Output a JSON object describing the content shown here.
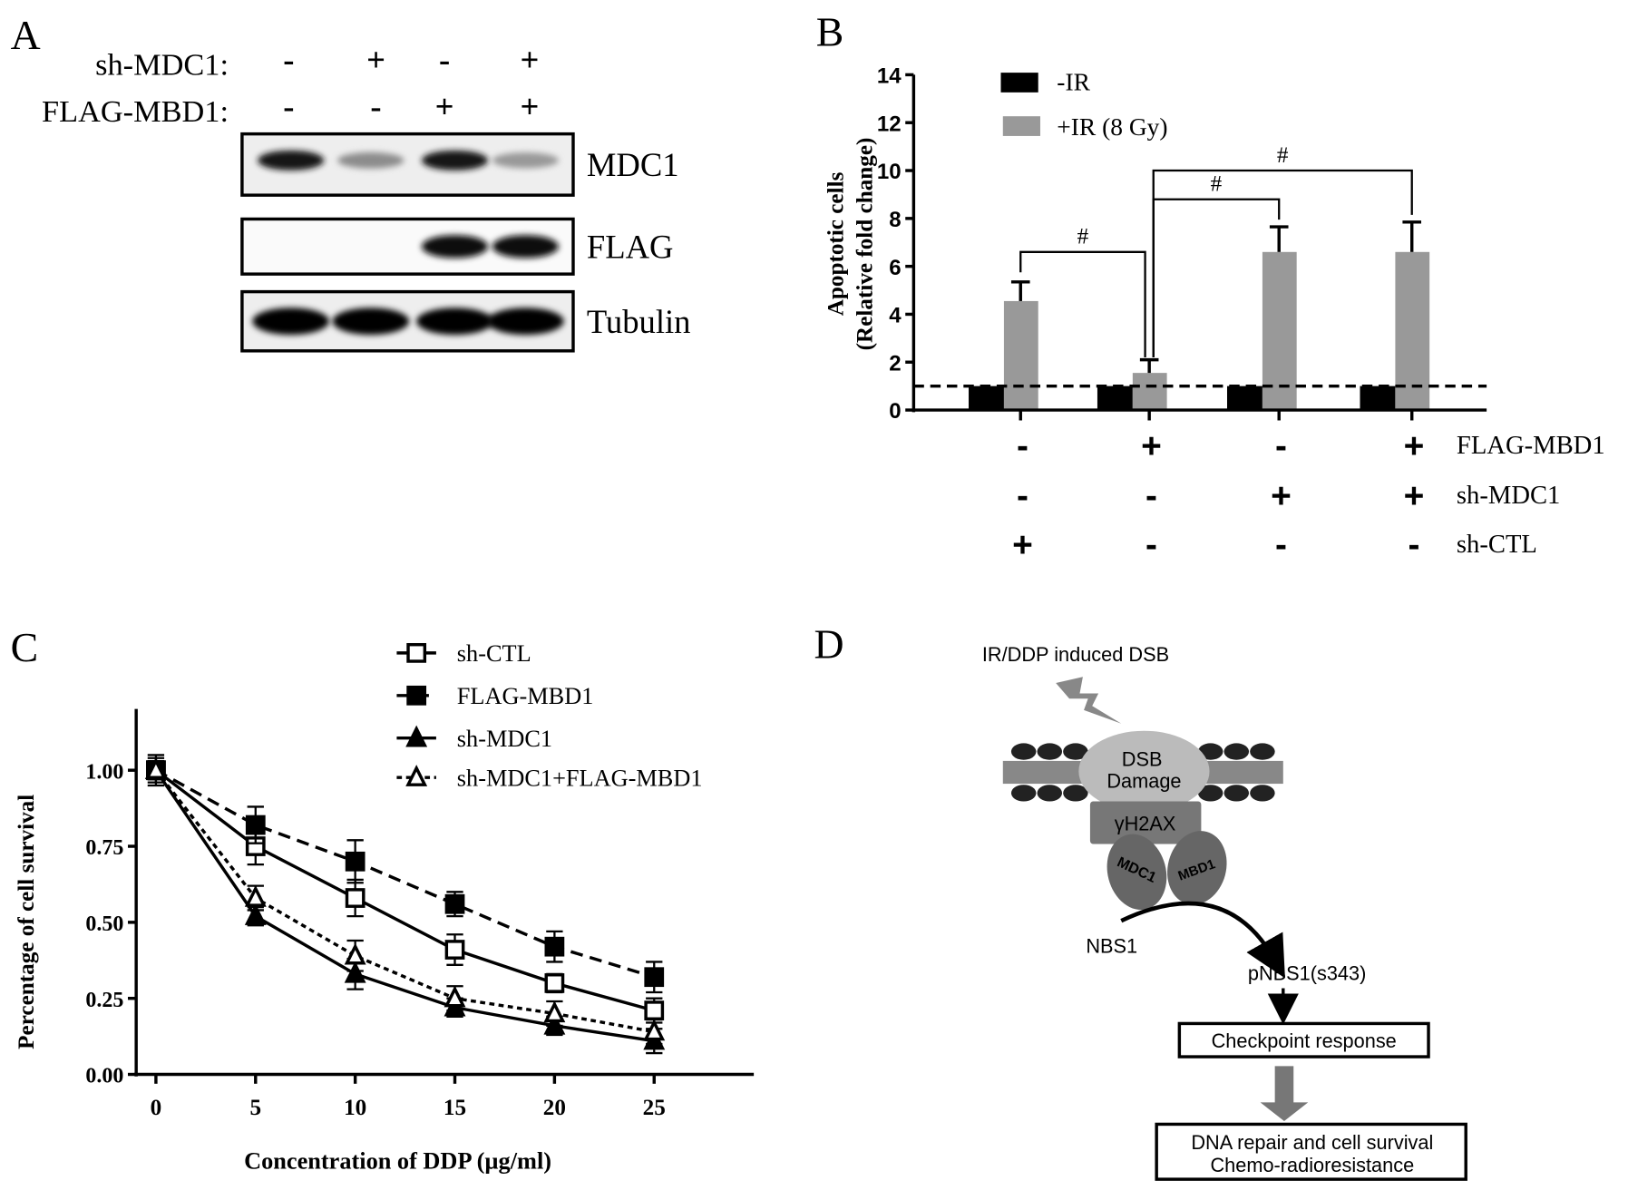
{
  "panel_labels": {
    "a": "A",
    "b": "B",
    "c": "C",
    "d": "D"
  },
  "panel_a": {
    "row_labels": [
      "sh-MDC1:",
      "FLAG-MBD1:"
    ],
    "rows": [
      [
        "-",
        "+",
        "-",
        "+"
      ],
      [
        "-",
        "-",
        "+",
        "+"
      ]
    ],
    "blots": [
      {
        "label": "MDC1",
        "intensity": [
          0.9,
          0.45,
          0.9,
          0.4
        ]
      },
      {
        "label": "FLAG",
        "intensity": [
          0.0,
          0.0,
          0.95,
          0.95
        ]
      },
      {
        "label": "Tubulin",
        "intensity": [
          1.0,
          1.0,
          1.0,
          1.0
        ]
      }
    ]
  },
  "chart_data": [
    {
      "type": "bar",
      "title": "",
      "ylabel": [
        "Apoptotic cells",
        "(Relative fold change)"
      ],
      "ylim": [
        0,
        14
      ],
      "yticks": [
        "0",
        "2",
        "4",
        "6",
        "8",
        "10",
        "12",
        "14"
      ],
      "reference_line": 1,
      "series": [
        {
          "name": "-IR",
          "color": "#000000",
          "values": [
            1,
            1,
            1,
            1
          ],
          "errors": [
            0,
            0,
            0,
            0
          ]
        },
        {
          "name": "+IR (8 Gy)",
          "color": "#999999",
          "values": [
            4.55,
            1.55,
            6.6,
            6.6
          ],
          "errors": [
            0.8,
            0.55,
            1.05,
            1.25
          ]
        }
      ],
      "condition_rows": [
        {
          "label": "FLAG-MBD1",
          "values": [
            "-",
            "+",
            "-",
            "+"
          ]
        },
        {
          "label": "sh-MDC1",
          "values": [
            "-",
            "-",
            "+",
            "+"
          ]
        },
        {
          "label": "sh-CTL",
          "values": [
            "+",
            "-",
            "-",
            "-"
          ]
        }
      ],
      "significance": [
        {
          "from": 0,
          "to": 1,
          "level": 6.6,
          "label": "#"
        },
        {
          "from": 1,
          "to": 2,
          "level": 8.8,
          "label": "#"
        },
        {
          "from": 1,
          "to": 3,
          "level": 10.0,
          "label": "#"
        }
      ],
      "legend_position": "top-left"
    },
    {
      "type": "line",
      "xlabel": "Concentration of DDP (µg/ml)",
      "ylabel": "Percentage of cell survival",
      "x": [
        0,
        5,
        10,
        15,
        20,
        25
      ],
      "xticks": [
        "0",
        "5",
        "10",
        "15",
        "20",
        "25"
      ],
      "yticks": [
        "0.00",
        "0.25",
        "0.50",
        "0.75",
        "1.00"
      ],
      "xlim": [
        0,
        30
      ],
      "ylim": [
        0,
        1.2
      ],
      "series": [
        {
          "name": "sh-CTL",
          "marker": "open-square",
          "line": "solid",
          "values": [
            1.0,
            0.75,
            0.58,
            0.41,
            0.3,
            0.21
          ],
          "errors": [
            0.04,
            0.06,
            0.06,
            0.05,
            0.03,
            0.04
          ]
        },
        {
          "name": "FLAG-MBD1",
          "marker": "filled-square",
          "line": "dashed",
          "values": [
            1.0,
            0.82,
            0.7,
            0.56,
            0.42,
            0.32
          ],
          "errors": [
            0.05,
            0.06,
            0.07,
            0.04,
            0.05,
            0.05
          ]
        },
        {
          "name": "sh-MDC1",
          "marker": "filled-triangle",
          "line": "solid",
          "values": [
            1.0,
            0.52,
            0.33,
            0.22,
            0.16,
            0.11
          ],
          "errors": [
            0.03,
            0.03,
            0.05,
            0.03,
            0.03,
            0.04
          ]
        },
        {
          "name": "sh-MDC1+FLAG-MBD1",
          "marker": "open-triangle",
          "line": "dotted",
          "values": [
            1.0,
            0.58,
            0.39,
            0.25,
            0.2,
            0.14
          ],
          "errors": [
            0.03,
            0.04,
            0.05,
            0.04,
            0.04,
            0.04
          ]
        }
      ],
      "legend_position": "top-right"
    }
  ],
  "panel_d": {
    "stimulus": "IR/DDP induced DSB",
    "damage_line1": "DSB",
    "damage_line2": "Damage",
    "h2ax": "γH2AX",
    "mdc1": "MDC1",
    "mbd1": "MBD1",
    "nbs1": "NBS1",
    "pnbs1": "pNBS1(s343)",
    "checkpoint": "Checkpoint  response",
    "outcome_line1": "DNA repair and cell survival",
    "outcome_line2": "Chemo-radioresistance"
  }
}
